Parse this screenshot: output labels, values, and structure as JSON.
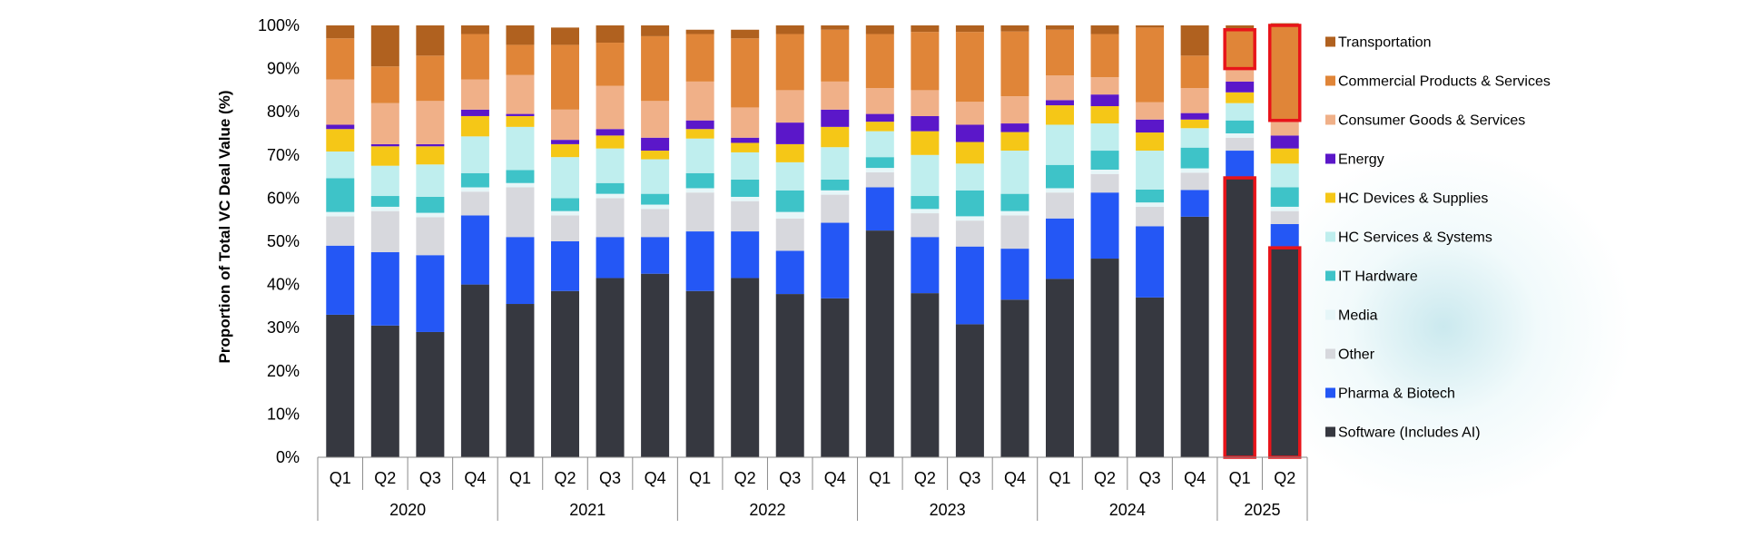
{
  "chart_data": {
    "type": "bar",
    "stacked": true,
    "ylabel": "Proportion of Total VC Deal Value (%)",
    "xlabel": "",
    "ylim": [
      0,
      100
    ],
    "yticks": [
      "0%",
      "10%",
      "20%",
      "30%",
      "40%",
      "50%",
      "60%",
      "70%",
      "80%",
      "90%",
      "100%"
    ],
    "categories": [
      "Q1",
      "Q2",
      "Q3",
      "Q4",
      "Q1",
      "Q2",
      "Q3",
      "Q4",
      "Q1",
      "Q2",
      "Q3",
      "Q4",
      "Q1",
      "Q2",
      "Q3",
      "Q4",
      "Q1",
      "Q2",
      "Q3",
      "Q4",
      "Q1",
      "Q2"
    ],
    "years": [
      {
        "label": "2020",
        "count": 4
      },
      {
        "label": "2021",
        "count": 4
      },
      {
        "label": "2022",
        "count": 4
      },
      {
        "label": "2023",
        "count": 4
      },
      {
        "label": "2024",
        "count": 4
      },
      {
        "label": "2025",
        "count": 2
      }
    ],
    "legend_position": "right",
    "highlight": {
      "color": "#e8141a",
      "note": "red outlines on Software and Commercial Products & Services segments for 2025 Q1 and Q2"
    },
    "series": [
      {
        "name": "Software (Includes AI)",
        "color": "#363840",
        "values": [
          33,
          30.5,
          29,
          40,
          35.5,
          38.5,
          41.5,
          42.5,
          38.5,
          41.5,
          37.8,
          36.8,
          52.5,
          38,
          30.8,
          36.5,
          41.3,
          46,
          37,
          55.7,
          64.7,
          48.5
        ]
      },
      {
        "name": "Pharma & Biotech",
        "color": "#2457f5",
        "values": [
          16,
          17,
          17.8,
          16,
          15.5,
          11.5,
          9.5,
          8.5,
          13.8,
          10.8,
          10,
          17.5,
          10,
          13,
          18,
          11.8,
          14,
          15.3,
          16.5,
          6.2,
          6.3,
          5.5
        ]
      },
      {
        "name": "Other",
        "color": "#d7d8dd",
        "values": [
          6.8,
          9.5,
          8.8,
          5.5,
          11.5,
          6,
          9,
          6.5,
          9,
          7,
          7.5,
          6.5,
          3.5,
          5.5,
          6,
          7.7,
          6,
          4.3,
          4.5,
          4,
          3,
          3
        ]
      },
      {
        "name": "Media",
        "color": "#e6f6f8",
        "values": [
          1,
          1,
          1,
          1,
          1,
          1,
          1,
          1,
          1,
          1,
          1.5,
          1,
          1,
          1,
          1,
          1,
          1,
          1,
          1,
          1,
          1,
          1
        ]
      },
      {
        "name": "IT Hardware",
        "color": "#3ec3c8",
        "values": [
          7.8,
          2.5,
          3.7,
          3.3,
          3,
          3,
          2.5,
          2.5,
          3.5,
          4,
          5,
          2.5,
          2.5,
          3,
          6,
          4,
          5.4,
          4.4,
          3,
          4.8,
          3,
          4.5
        ]
      },
      {
        "name": "HC Services & Systems",
        "color": "#bfeeee",
        "values": [
          6.2,
          7,
          7.5,
          8.5,
          10,
          9.5,
          8,
          8,
          8,
          6.3,
          6.5,
          7.5,
          6,
          9.5,
          6.2,
          10,
          9.3,
          6.3,
          9,
          4.5,
          4,
          5.5
        ]
      },
      {
        "name": "HC Devices & Supplies",
        "color": "#f5c717",
        "values": [
          5.2,
          4.5,
          4.2,
          4.7,
          2.5,
          3,
          3,
          2,
          2.2,
          2.2,
          4.2,
          4.7,
          2.2,
          5.5,
          5,
          4.3,
          4.5,
          4,
          4.2,
          2,
          2.5,
          3.5
        ]
      },
      {
        "name": "Energy",
        "color": "#5b17c9",
        "values": [
          1,
          0.5,
          0.5,
          1.5,
          0.5,
          1,
          1.5,
          3,
          2,
          1.2,
          5,
          4,
          1.8,
          3.5,
          4,
          2,
          1.2,
          2.7,
          3,
          1.5,
          2.5,
          3
        ]
      },
      {
        "name": "Consumer Goods & Services",
        "color": "#f0b088",
        "values": [
          10.5,
          9.5,
          10,
          7,
          9,
          7,
          10,
          8.5,
          9,
          7,
          7.5,
          6.5,
          6,
          6,
          5.3,
          6.3,
          5.7,
          4,
          4,
          5.8,
          3,
          3.5
        ]
      },
      {
        "name": "Commercial Products & Services",
        "color": "#e08538",
        "values": [
          9.5,
          8.5,
          10.5,
          10.5,
          7,
          15,
          10,
          15,
          11,
          16,
          13,
          12,
          12.5,
          13.5,
          16.2,
          15,
          10.6,
          10,
          17.3,
          7.5,
          9,
          22
        ]
      },
      {
        "name": "Transportation",
        "color": "#b0611f",
        "values": [
          3,
          9.5,
          7,
          2,
          4.5,
          4,
          4,
          2.5,
          1,
          2,
          2,
          1,
          2,
          1.5,
          1.5,
          1.4,
          1,
          2,
          0.5,
          7,
          1,
          0.5
        ]
      }
    ]
  }
}
